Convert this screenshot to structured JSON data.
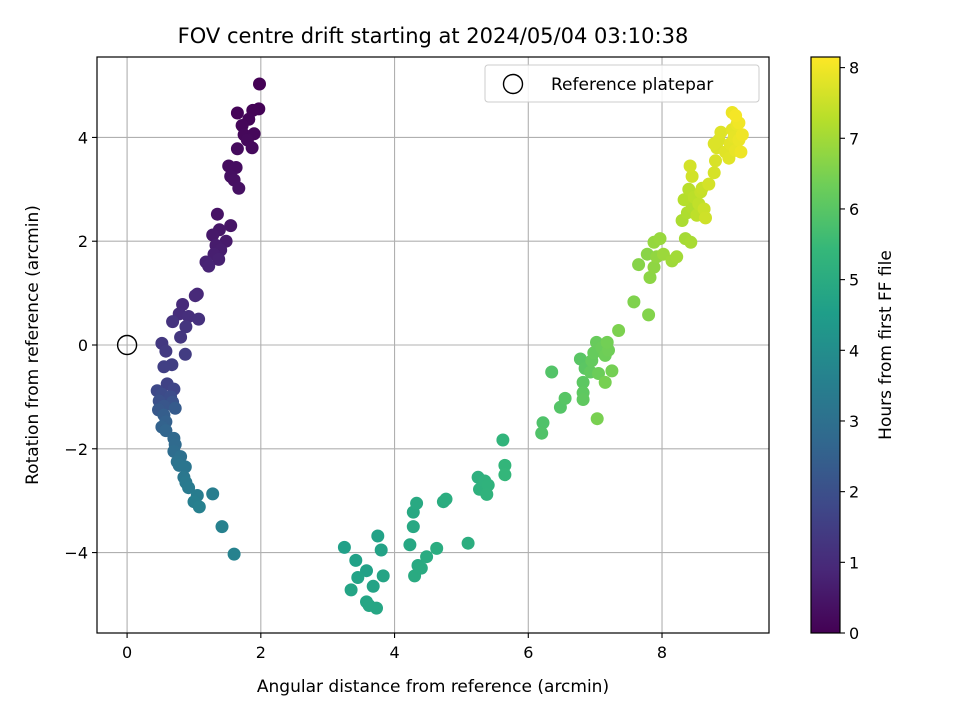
{
  "chart_data": {
    "type": "scatter",
    "title": "FOV centre drift starting at 2024/05/04 03:10:38",
    "xlabel": "Angular distance from reference (arcmin)",
    "ylabel": "Rotation from reference (arcmin)",
    "xlim": [
      -0.45,
      9.6
    ],
    "ylim": [
      -5.55,
      5.55
    ],
    "xticks": [
      0,
      2,
      4,
      6,
      8
    ],
    "yticks": [
      -4,
      -2,
      0,
      2,
      4
    ],
    "xtick_labels": [
      "0",
      "2",
      "4",
      "6",
      "8"
    ],
    "ytick_labels": [
      "−4",
      "−2",
      "0",
      "2",
      "4"
    ],
    "grid": true,
    "legend": {
      "placement": "top-right",
      "entries": [
        "Reference platepar"
      ]
    },
    "reference_point": {
      "x": 0,
      "y": 0,
      "label": "Reference platepar"
    },
    "colorbar": {
      "label": "Hours from first FF file",
      "range": [
        0,
        8.15
      ],
      "ticks": [
        0,
        1,
        2,
        3,
        4,
        5,
        6,
        7,
        8
      ],
      "tick_labels": [
        "0",
        "1",
        "2",
        "3",
        "4",
        "5",
        "6",
        "7",
        "8"
      ],
      "colormap": "viridis",
      "colors": [
        "#440154",
        "#482878",
        "#3e4989",
        "#31688e",
        "#26828e",
        "#1f9e89",
        "#35b779",
        "#6ece58",
        "#b5de2b",
        "#fde725"
      ]
    },
    "points": [
      {
        "x": 1.98,
        "y": 5.03,
        "h": 0.02
      },
      {
        "x": 1.97,
        "y": 4.55,
        "h": 0.04
      },
      {
        "x": 1.88,
        "y": 4.52,
        "h": 0.06
      },
      {
        "x": 1.65,
        "y": 4.47,
        "h": 0.08
      },
      {
        "x": 1.82,
        "y": 4.35,
        "h": 0.1
      },
      {
        "x": 1.72,
        "y": 4.23,
        "h": 0.12
      },
      {
        "x": 1.9,
        "y": 4.07,
        "h": 0.14
      },
      {
        "x": 1.75,
        "y": 4.05,
        "h": 0.16
      },
      {
        "x": 1.8,
        "y": 3.95,
        "h": 0.18
      },
      {
        "x": 1.87,
        "y": 3.8,
        "h": 0.2
      },
      {
        "x": 1.65,
        "y": 3.78,
        "h": 0.23
      },
      {
        "x": 1.52,
        "y": 3.45,
        "h": 0.26
      },
      {
        "x": 1.63,
        "y": 3.42,
        "h": 0.29
      },
      {
        "x": 1.55,
        "y": 3.25,
        "h": 0.32
      },
      {
        "x": 1.6,
        "y": 3.18,
        "h": 0.35
      },
      {
        "x": 1.67,
        "y": 3.02,
        "h": 0.38
      },
      {
        "x": 1.35,
        "y": 2.52,
        "h": 0.42
      },
      {
        "x": 1.55,
        "y": 2.3,
        "h": 0.46
      },
      {
        "x": 1.38,
        "y": 2.22,
        "h": 0.5
      },
      {
        "x": 1.28,
        "y": 2.12,
        "h": 0.54
      },
      {
        "x": 1.48,
        "y": 2.0,
        "h": 0.58
      },
      {
        "x": 1.33,
        "y": 1.92,
        "h": 0.62
      },
      {
        "x": 1.4,
        "y": 1.83,
        "h": 0.66
      },
      {
        "x": 1.3,
        "y": 1.75,
        "h": 0.7
      },
      {
        "x": 1.37,
        "y": 1.65,
        "h": 0.74
      },
      {
        "x": 1.18,
        "y": 1.6,
        "h": 0.78
      },
      {
        "x": 1.22,
        "y": 1.52,
        "h": 0.82
      },
      {
        "x": 1.05,
        "y": 0.98,
        "h": 0.9
      },
      {
        "x": 1.02,
        "y": 0.95,
        "h": 0.95
      },
      {
        "x": 0.83,
        "y": 0.78,
        "h": 1.0
      },
      {
        "x": 0.78,
        "y": 0.6,
        "h": 1.05
      },
      {
        "x": 0.92,
        "y": 0.55,
        "h": 1.1
      },
      {
        "x": 1.07,
        "y": 0.5,
        "h": 1.15
      },
      {
        "x": 0.68,
        "y": 0.45,
        "h": 1.2
      },
      {
        "x": 0.88,
        "y": 0.35,
        "h": 1.25
      },
      {
        "x": 0.8,
        "y": 0.15,
        "h": 1.3
      },
      {
        "x": 0.52,
        "y": 0.03,
        "h": 1.35
      },
      {
        "x": 0.58,
        "y": -0.12,
        "h": 1.4
      },
      {
        "x": 0.87,
        "y": -0.18,
        "h": 1.45
      },
      {
        "x": 0.67,
        "y": -0.38,
        "h": 1.5
      },
      {
        "x": 0.55,
        "y": -0.42,
        "h": 1.55
      },
      {
        "x": 0.6,
        "y": -0.75,
        "h": 1.62
      },
      {
        "x": 0.7,
        "y": -0.85,
        "h": 1.7
      },
      {
        "x": 0.45,
        "y": -0.88,
        "h": 1.78
      },
      {
        "x": 0.52,
        "y": -0.95,
        "h": 1.86
      },
      {
        "x": 0.65,
        "y": -1.0,
        "h": 1.94
      },
      {
        "x": 0.48,
        "y": -1.08,
        "h": 2.02
      },
      {
        "x": 0.68,
        "y": -1.1,
        "h": 2.1
      },
      {
        "x": 0.55,
        "y": -1.18,
        "h": 2.18
      },
      {
        "x": 0.47,
        "y": -1.25,
        "h": 2.26
      },
      {
        "x": 0.72,
        "y": -1.22,
        "h": 2.34
      },
      {
        "x": 0.55,
        "y": -1.35,
        "h": 2.42
      },
      {
        "x": 0.58,
        "y": -1.48,
        "h": 2.5
      },
      {
        "x": 0.52,
        "y": -1.58,
        "h": 2.58
      },
      {
        "x": 0.58,
        "y": -1.65,
        "h": 2.66
      },
      {
        "x": 0.7,
        "y": -1.8,
        "h": 2.74
      },
      {
        "x": 0.72,
        "y": -1.92,
        "h": 2.82
      },
      {
        "x": 0.7,
        "y": -2.05,
        "h": 2.9
      },
      {
        "x": 0.8,
        "y": -2.15,
        "h": 2.98
      },
      {
        "x": 0.75,
        "y": -2.25,
        "h": 3.06
      },
      {
        "x": 0.78,
        "y": -2.32,
        "h": 3.12
      },
      {
        "x": 0.87,
        "y": -2.35,
        "h": 3.18
      },
      {
        "x": 0.85,
        "y": -2.55,
        "h": 3.24
      },
      {
        "x": 0.88,
        "y": -2.65,
        "h": 3.3
      },
      {
        "x": 0.92,
        "y": -2.75,
        "h": 3.36
      },
      {
        "x": 1.05,
        "y": -2.9,
        "h": 3.42
      },
      {
        "x": 1.28,
        "y": -2.87,
        "h": 3.46
      },
      {
        "x": 1.0,
        "y": -3.02,
        "h": 3.5
      },
      {
        "x": 1.08,
        "y": -3.12,
        "h": 3.54
      },
      {
        "x": 1.42,
        "y": -3.5,
        "h": 3.58
      },
      {
        "x": 1.6,
        "y": -4.03,
        "h": 3.62
      },
      {
        "x": 3.25,
        "y": -3.9,
        "h": 4.6
      },
      {
        "x": 3.42,
        "y": -4.15,
        "h": 4.62
      },
      {
        "x": 3.58,
        "y": -4.35,
        "h": 4.64
      },
      {
        "x": 3.75,
        "y": -3.68,
        "h": 4.66
      },
      {
        "x": 3.8,
        "y": -3.95,
        "h": 4.68
      },
      {
        "x": 3.45,
        "y": -4.48,
        "h": 4.7
      },
      {
        "x": 3.68,
        "y": -4.65,
        "h": 4.72
      },
      {
        "x": 3.35,
        "y": -4.72,
        "h": 4.74
      },
      {
        "x": 3.83,
        "y": -4.45,
        "h": 4.76
      },
      {
        "x": 3.58,
        "y": -4.95,
        "h": 4.78
      },
      {
        "x": 3.62,
        "y": -5.02,
        "h": 4.8
      },
      {
        "x": 3.73,
        "y": -5.07,
        "h": 4.82
      },
      {
        "x": 4.23,
        "y": -3.85,
        "h": 4.86
      },
      {
        "x": 4.28,
        "y": -3.5,
        "h": 4.88
      },
      {
        "x": 4.28,
        "y": -3.22,
        "h": 4.9
      },
      {
        "x": 4.33,
        "y": -3.05,
        "h": 4.92
      },
      {
        "x": 4.35,
        "y": -4.25,
        "h": 4.94
      },
      {
        "x": 4.3,
        "y": -4.45,
        "h": 4.96
      },
      {
        "x": 4.4,
        "y": -4.3,
        "h": 4.98
      },
      {
        "x": 4.48,
        "y": -4.08,
        "h": 5.0
      },
      {
        "x": 4.63,
        "y": -3.92,
        "h": 5.02
      },
      {
        "x": 4.73,
        "y": -3.02,
        "h": 5.04
      },
      {
        "x": 4.77,
        "y": -2.97,
        "h": 5.06
      },
      {
        "x": 5.1,
        "y": -3.82,
        "h": 5.08
      },
      {
        "x": 5.25,
        "y": -2.55,
        "h": 5.15
      },
      {
        "x": 5.27,
        "y": -2.78,
        "h": 5.18
      },
      {
        "x": 5.35,
        "y": -2.62,
        "h": 5.21
      },
      {
        "x": 5.4,
        "y": -2.7,
        "h": 5.24
      },
      {
        "x": 5.38,
        "y": -2.88,
        "h": 5.27
      },
      {
        "x": 5.62,
        "y": -1.83,
        "h": 5.32
      },
      {
        "x": 5.65,
        "y": -2.32,
        "h": 5.35
      },
      {
        "x": 5.65,
        "y": -2.5,
        "h": 5.38
      },
      {
        "x": 6.22,
        "y": -1.5,
        "h": 5.85
      },
      {
        "x": 6.2,
        "y": -1.7,
        "h": 5.88
      },
      {
        "x": 6.35,
        "y": -0.52,
        "h": 5.91
      },
      {
        "x": 6.48,
        "y": -1.2,
        "h": 5.94
      },
      {
        "x": 6.55,
        "y": -1.03,
        "h": 5.97
      },
      {
        "x": 6.78,
        "y": -0.27,
        "h": 6.0
      },
      {
        "x": 6.85,
        "y": -0.45,
        "h": 6.03
      },
      {
        "x": 6.82,
        "y": -0.72,
        "h": 6.06
      },
      {
        "x": 6.82,
        "y": -0.92,
        "h": 6.09
      },
      {
        "x": 6.82,
        "y": -1.05,
        "h": 6.12
      },
      {
        "x": 6.93,
        "y": -0.52,
        "h": 6.15
      },
      {
        "x": 6.95,
        "y": -0.3,
        "h": 6.18
      },
      {
        "x": 6.98,
        "y": -0.15,
        "h": 6.21
      },
      {
        "x": 7.02,
        "y": 0.05,
        "h": 6.24
      },
      {
        "x": 7.1,
        "y": -0.05,
        "h": 6.27
      },
      {
        "x": 7.05,
        "y": -0.55,
        "h": 6.3
      },
      {
        "x": 7.15,
        "y": -0.2,
        "h": 6.33
      },
      {
        "x": 7.2,
        "y": -0.1,
        "h": 6.36
      },
      {
        "x": 7.18,
        "y": 0.05,
        "h": 6.39
      },
      {
        "x": 7.25,
        "y": -0.5,
        "h": 6.42
      },
      {
        "x": 7.15,
        "y": -0.72,
        "h": 6.45
      },
      {
        "x": 7.03,
        "y": -1.42,
        "h": 6.48
      },
      {
        "x": 7.35,
        "y": 0.28,
        "h": 6.52
      },
      {
        "x": 7.58,
        "y": 0.83,
        "h": 6.56
      },
      {
        "x": 7.8,
        "y": 0.58,
        "h": 6.6
      },
      {
        "x": 7.65,
        "y": 1.55,
        "h": 6.64
      },
      {
        "x": 7.78,
        "y": 1.75,
        "h": 6.68
      },
      {
        "x": 7.82,
        "y": 1.3,
        "h": 6.72
      },
      {
        "x": 7.88,
        "y": 1.5,
        "h": 6.76
      },
      {
        "x": 7.92,
        "y": 1.7,
        "h": 6.8
      },
      {
        "x": 7.88,
        "y": 1.98,
        "h": 6.84
      },
      {
        "x": 7.97,
        "y": 2.05,
        "h": 6.88
      },
      {
        "x": 8.02,
        "y": 1.75,
        "h": 6.92
      },
      {
        "x": 8.15,
        "y": 1.62,
        "h": 6.96
      },
      {
        "x": 8.22,
        "y": 1.7,
        "h": 7.0
      },
      {
        "x": 8.35,
        "y": 2.05,
        "h": 7.04
      },
      {
        "x": 8.43,
        "y": 1.98,
        "h": 7.08
      },
      {
        "x": 8.3,
        "y": 2.4,
        "h": 7.12
      },
      {
        "x": 8.38,
        "y": 2.55,
        "h": 7.16
      },
      {
        "x": 8.45,
        "y": 2.65,
        "h": 7.2
      },
      {
        "x": 8.33,
        "y": 2.8,
        "h": 7.24
      },
      {
        "x": 8.4,
        "y": 3.0,
        "h": 7.28
      },
      {
        "x": 8.48,
        "y": 2.85,
        "h": 7.32
      },
      {
        "x": 8.52,
        "y": 2.5,
        "h": 7.36
      },
      {
        "x": 8.55,
        "y": 2.72,
        "h": 7.4
      },
      {
        "x": 8.58,
        "y": 2.95,
        "h": 7.44
      },
      {
        "x": 8.6,
        "y": 3.02,
        "h": 7.48
      },
      {
        "x": 8.63,
        "y": 2.62,
        "h": 7.52
      },
      {
        "x": 8.65,
        "y": 2.45,
        "h": 7.56
      },
      {
        "x": 8.45,
        "y": 3.25,
        "h": 7.6
      },
      {
        "x": 8.42,
        "y": 3.45,
        "h": 7.62
      },
      {
        "x": 8.7,
        "y": 3.1,
        "h": 7.64
      },
      {
        "x": 8.78,
        "y": 3.32,
        "h": 7.66
      },
      {
        "x": 8.8,
        "y": 3.55,
        "h": 7.68
      },
      {
        "x": 8.82,
        "y": 3.8,
        "h": 7.7
      },
      {
        "x": 8.85,
        "y": 3.95,
        "h": 7.72
      },
      {
        "x": 8.78,
        "y": 3.88,
        "h": 7.74
      },
      {
        "x": 8.88,
        "y": 4.1,
        "h": 7.76
      },
      {
        "x": 8.95,
        "y": 3.72,
        "h": 7.78
      },
      {
        "x": 9.0,
        "y": 3.6,
        "h": 7.8
      },
      {
        "x": 9.02,
        "y": 3.88,
        "h": 7.82
      },
      {
        "x": 9.05,
        "y": 4.15,
        "h": 7.84
      },
      {
        "x": 9.08,
        "y": 4.0,
        "h": 7.86
      },
      {
        "x": 9.1,
        "y": 3.75,
        "h": 7.88
      },
      {
        "x": 9.12,
        "y": 4.25,
        "h": 7.9
      },
      {
        "x": 9.15,
        "y": 3.95,
        "h": 7.92
      },
      {
        "x": 9.05,
        "y": 4.48,
        "h": 7.94
      },
      {
        "x": 9.18,
        "y": 3.72,
        "h": 7.96
      },
      {
        "x": 9.2,
        "y": 4.05,
        "h": 7.98
      },
      {
        "x": 9.15,
        "y": 4.28,
        "h": 8.0
      },
      {
        "x": 9.1,
        "y": 4.42,
        "h": 8.05
      }
    ]
  }
}
